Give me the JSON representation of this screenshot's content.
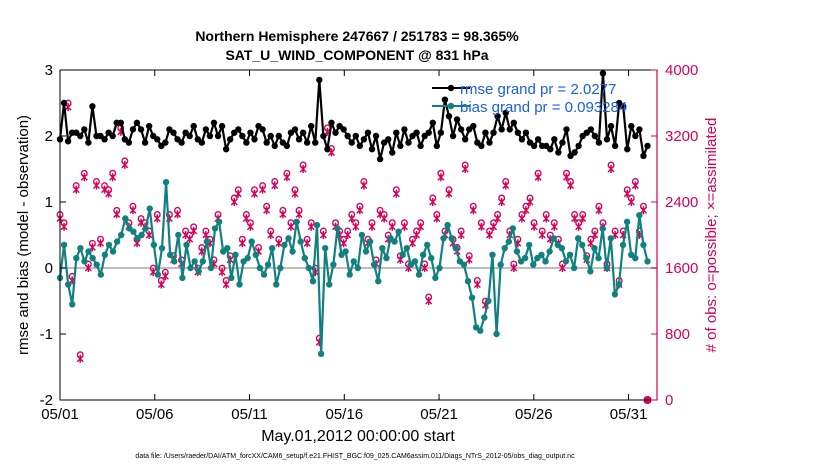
{
  "chart_data": {
    "type": "line",
    "title_line1": "Northern Hemisphere 247667 / 251783 = 98.365%",
    "title_line2": "SAT_U_WIND_COMPONENT @ 831 hPa",
    "xlabel": "May.01,2012 00:00:00 start",
    "ylabel_left": "rmse and bias (model - observation)",
    "ylabel_right": "# of obs: o=possible; ×=assimilated",
    "footnote": "data file: /Users/raeder/DAI/ATM_forcXX/CAM6_setup/f.e21.FHIST_BGC.f09_025.CAM6assim.011/Diags_NTrS_2012-05/obs_diag_output.nc",
    "x_tick_labels": [
      "05/01",
      "05/06",
      "05/11",
      "05/16",
      "05/21",
      "05/26",
      "05/31"
    ],
    "x_tick_days": [
      0,
      5,
      10,
      15,
      20,
      25,
      30
    ],
    "y_left_range": [
      -2,
      3
    ],
    "y_left_ticks": [
      "-2",
      "-1",
      "0",
      "1",
      "2",
      "3"
    ],
    "y_right_range": [
      0,
      4000
    ],
    "y_right_ticks": [
      "0",
      "800",
      "1600",
      "2400",
      "3200",
      "4000"
    ],
    "x_range_days": [
      0,
      31.5
    ],
    "legend": [
      {
        "name": "rmse grand pr = 2.0277",
        "color": "#000000"
      },
      {
        "name": "bias grand pr = 0.093284",
        "color": "#138080"
      }
    ],
    "series": [
      {
        "name": "rmse",
        "color": "#000000",
        "values": [
          1.95,
          2.5,
          1.92,
          2.05,
          2.05,
          2.0,
          2.1,
          1.9,
          2.45,
          2.0,
          2.0,
          1.95,
          2.05,
          2.0,
          2.2,
          2.2,
          1.95,
          1.9,
          2.1,
          2.2,
          2.1,
          1.9,
          2.15,
          2.0,
          1.95,
          1.85,
          1.9,
          2.1,
          2.05,
          1.95,
          1.9,
          2.05,
          2.0,
          2.15,
          1.95,
          1.9,
          2.1,
          2.0,
          2.2,
          2.0,
          2.15,
          1.8,
          1.95,
          2.05,
          2.1,
          2.0,
          1.9,
          2.05,
          1.95,
          2.15,
          2.1,
          1.9,
          2.0,
          1.85,
          2.0,
          1.9,
          1.85,
          2.05,
          2.1,
          1.95,
          2.05,
          1.9,
          2.15,
          1.9,
          2.85,
          2.0,
          1.8,
          2.2,
          2.05,
          2.15,
          2.1,
          2.0,
          1.9,
          2.0,
          1.85,
          1.95,
          2.05,
          1.8,
          2.0,
          1.65,
          1.9,
          1.95,
          1.75,
          2.05,
          1.85,
          2.1,
          1.9,
          2.0,
          2.05,
          1.85,
          2.0,
          2.05,
          2.2,
          1.85,
          2.05,
          2.55,
          2.3,
          2.0,
          2.25,
          2.1,
          1.95,
          2.1,
          2.15,
          1.9,
          1.85,
          2.05,
          1.9,
          2.05,
          2.3,
          2.1,
          2.35,
          2.1,
          2.2,
          2.05,
          1.95,
          2.05,
          1.9,
          1.85,
          1.95,
          1.85,
          1.85,
          1.8,
          1.95,
          1.75,
          1.9,
          2.1,
          1.7,
          1.75,
          1.85,
          2.0,
          2.05,
          2.1,
          2.0,
          1.9,
          2.95,
          1.95,
          2.15,
          1.85,
          2.5,
          2.45,
          1.8,
          2.15,
          2.0,
          2.1,
          1.7,
          1.85
        ]
      },
      {
        "name": "bias",
        "color": "#138080",
        "values": [
          -0.15,
          0.35,
          -0.25,
          -0.55,
          0.15,
          0.3,
          0.1,
          0.25,
          0.15,
          0.05,
          -0.1,
          0.2,
          0.35,
          0.25,
          0.4,
          0.5,
          0.75,
          0.6,
          0.55,
          0.45,
          0.5,
          0.6,
          0.9,
          0.35,
          -0.1,
          0.3,
          1.3,
          0.2,
          0.1,
          0.5,
          -0.15,
          0.35,
          0.0,
          0.1,
          -0.05,
          0.1,
          0.4,
          0.0,
          0.6,
          0.7,
          0.25,
          0.3,
          -0.15,
          0.2,
          -0.25,
          0.1,
          0.15,
          0.4,
          0.2,
          0.0,
          -0.1,
          0.05,
          0.3,
          -0.25,
          0.0,
          0.35,
          0.45,
          0.25,
          0.7,
          0.4,
          0.15,
          0.0,
          -0.2,
          0.65,
          -1.3,
          0.3,
          -0.25,
          0.05,
          0.6,
          0.2,
          0.25,
          -0.1,
          0.1,
          0.0,
          0.5,
          0.25,
          0.4,
          0.05,
          -0.2,
          0.3,
          0.15,
          0.45,
          0.4,
          0.55,
          0.2,
          0.3,
          0.05,
          0.1,
          -0.1,
          0.2,
          0.35,
          0.15,
          -0.15,
          0.0,
          0.45,
          0.65,
          0.45,
          0.3,
          0.1,
          0.05,
          -0.2,
          -0.45,
          -0.9,
          -0.95,
          -0.75,
          -0.5,
          0.2,
          -1.0,
          0.05,
          0.3,
          0.4,
          0.6,
          0.25,
          0.1,
          0.15,
          0.35,
          0.05,
          0.15,
          0.2,
          0.1,
          0.25,
          0.45,
          0.35,
          0.3,
          0.1,
          0.2,
          0.0,
          0.45,
          0.35,
          0.15,
          -0.05,
          0.3,
          0.15,
          0.6,
          0.0,
          0.45,
          -0.4,
          -0.25,
          0.35,
          0.7,
          0.2,
          0.15,
          0.8,
          0.35,
          0.1
        ]
      },
      {
        "name": "obs possible",
        "color": "#d6005b",
        "values": [
          2200,
          2100,
          3550,
          1450,
          2550,
          500,
          2700,
          1600,
          1850,
          2600,
          1900,
          2550,
          2500,
          2700,
          2250,
          3250,
          2850,
          2100,
          2300,
          1900,
          2150,
          2100,
          2000,
          1550,
          2200,
          1400,
          1500,
          2200,
          1700,
          2250,
          1650,
          2000,
          1950,
          2050,
          1550,
          1800,
          2000,
          1900,
          1650,
          2200,
          1550,
          1400,
          1700,
          2400,
          2500,
          1900,
          2200,
          2100,
          2500,
          1800,
          2550,
          2300,
          2000,
          2600,
          1900,
          2250,
          2700,
          2100,
          2500,
          2250,
          2800,
          1900,
          2100,
          1550,
          700,
          2000,
          3250,
          3000,
          2100,
          2000,
          1900,
          2000,
          2200,
          2100,
          2300,
          2600,
          1900,
          2100,
          1650,
          2250,
          2200,
          1950,
          2100,
          2500,
          1700,
          2100,
          1600,
          1900,
          2000,
          2100,
          1600,
          1200,
          2400,
          2200,
          2700,
          2000,
          2500,
          1900,
          1800,
          2000,
          2800,
          1700,
          2300,
          1400,
          2100,
          1150,
          2000,
          2100,
          2200,
          2400,
          2600,
          2000,
          1600,
          1900,
          2200,
          2300,
          2400,
          2100,
          2700,
          2000,
          2200,
          1950,
          2100,
          1900,
          1600,
          2700,
          2600,
          2200,
          2100,
          2200,
          1700,
          1900,
          2000,
          2300,
          2100,
          1600,
          2800,
          2000,
          1400,
          2000,
          2500,
          2400,
          2600,
          2000,
          2300,
          0
        ]
      }
    ]
  }
}
